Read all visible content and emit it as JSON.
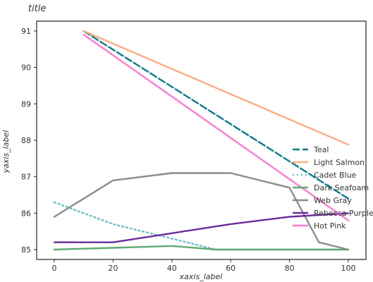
{
  "chart_data": {
    "type": "line",
    "title": "title",
    "xlabel": "xaxis_label",
    "ylabel": "yaxis_label",
    "xlim": [
      -6,
      106
    ],
    "ylim": [
      84.73,
      91.27
    ],
    "x_ticks": [
      0,
      20,
      40,
      60,
      80,
      100
    ],
    "y_ticks": [
      85,
      86,
      87,
      88,
      89,
      90,
      91
    ],
    "legend_position": "right",
    "grid": false,
    "series": [
      {
        "name": "Teal",
        "color": "#0a7a8a",
        "dash": "10,4",
        "x": [
          10,
          100
        ],
        "y": [
          91.0,
          86.4
        ]
      },
      {
        "name": "Light Salmon",
        "color": "#ffab80",
        "dash": "",
        "x": [
          10,
          100
        ],
        "y": [
          91.0,
          87.88
        ]
      },
      {
        "name": "Cadet Blue",
        "color": "#6cbec2",
        "dash": "2,4",
        "x": [
          0,
          20,
          40,
          55,
          100
        ],
        "y": [
          86.3,
          85.7,
          85.3,
          85.0,
          85.0
        ]
      },
      {
        "name": "Dark Seafoam",
        "color": "#61aa72",
        "dash": "",
        "x": [
          0,
          20,
          40,
          55,
          100
        ],
        "y": [
          85.0,
          85.05,
          85.1,
          85.0,
          85.0
        ]
      },
      {
        "name": "Web Gray",
        "color": "#8c8c8c",
        "dash": "",
        "x": [
          0,
          20,
          40,
          60,
          80,
          90,
          100
        ],
        "y": [
          85.9,
          86.9,
          87.1,
          87.1,
          86.7,
          85.2,
          85.0
        ]
      },
      {
        "name": "Rebecca Purple",
        "color": "#6a2c9c",
        "dash": "",
        "x": [
          0,
          20,
          40,
          60,
          80,
          100
        ],
        "y": [
          85.2,
          85.2,
          85.45,
          85.7,
          85.9,
          86.0
        ]
      },
      {
        "name": "Hot Pink",
        "color": "#ff7ad0",
        "dash": "",
        "x": [
          10,
          100
        ],
        "y": [
          90.9,
          85.8
        ]
      }
    ]
  },
  "legend_order": [
    "Teal",
    "Light Salmon",
    "Cadet Blue",
    "Dark Seafoam",
    "Web Gray",
    "Rebecca Purple",
    "Hot Pink"
  ],
  "fill_color": "#222222"
}
